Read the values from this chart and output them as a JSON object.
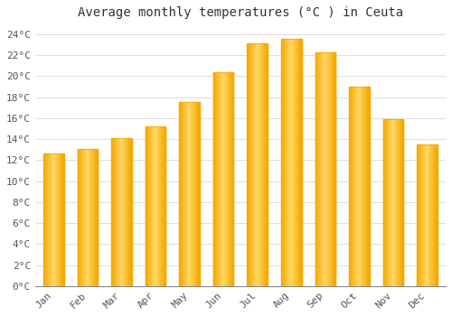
{
  "title": "Average monthly temperatures (°C ) in Ceuta",
  "months": [
    "Jan",
    "Feb",
    "Mar",
    "Apr",
    "May",
    "Jun",
    "Jul",
    "Aug",
    "Sep",
    "Oct",
    "Nov",
    "Dec"
  ],
  "values": [
    12.6,
    13.1,
    14.1,
    15.2,
    17.5,
    20.4,
    23.1,
    23.6,
    22.3,
    19.0,
    15.9,
    13.5
  ],
  "bar_color_center": "#FFD966",
  "bar_color_edge": "#F5A800",
  "background_color": "#FFFFFF",
  "grid_color": "#DDDDDD",
  "ylim": [
    0,
    25
  ],
  "yticks": [
    0,
    2,
    4,
    6,
    8,
    10,
    12,
    14,
    16,
    18,
    20,
    22,
    24
  ],
  "title_fontsize": 10,
  "tick_fontsize": 8,
  "bar_width": 0.6
}
